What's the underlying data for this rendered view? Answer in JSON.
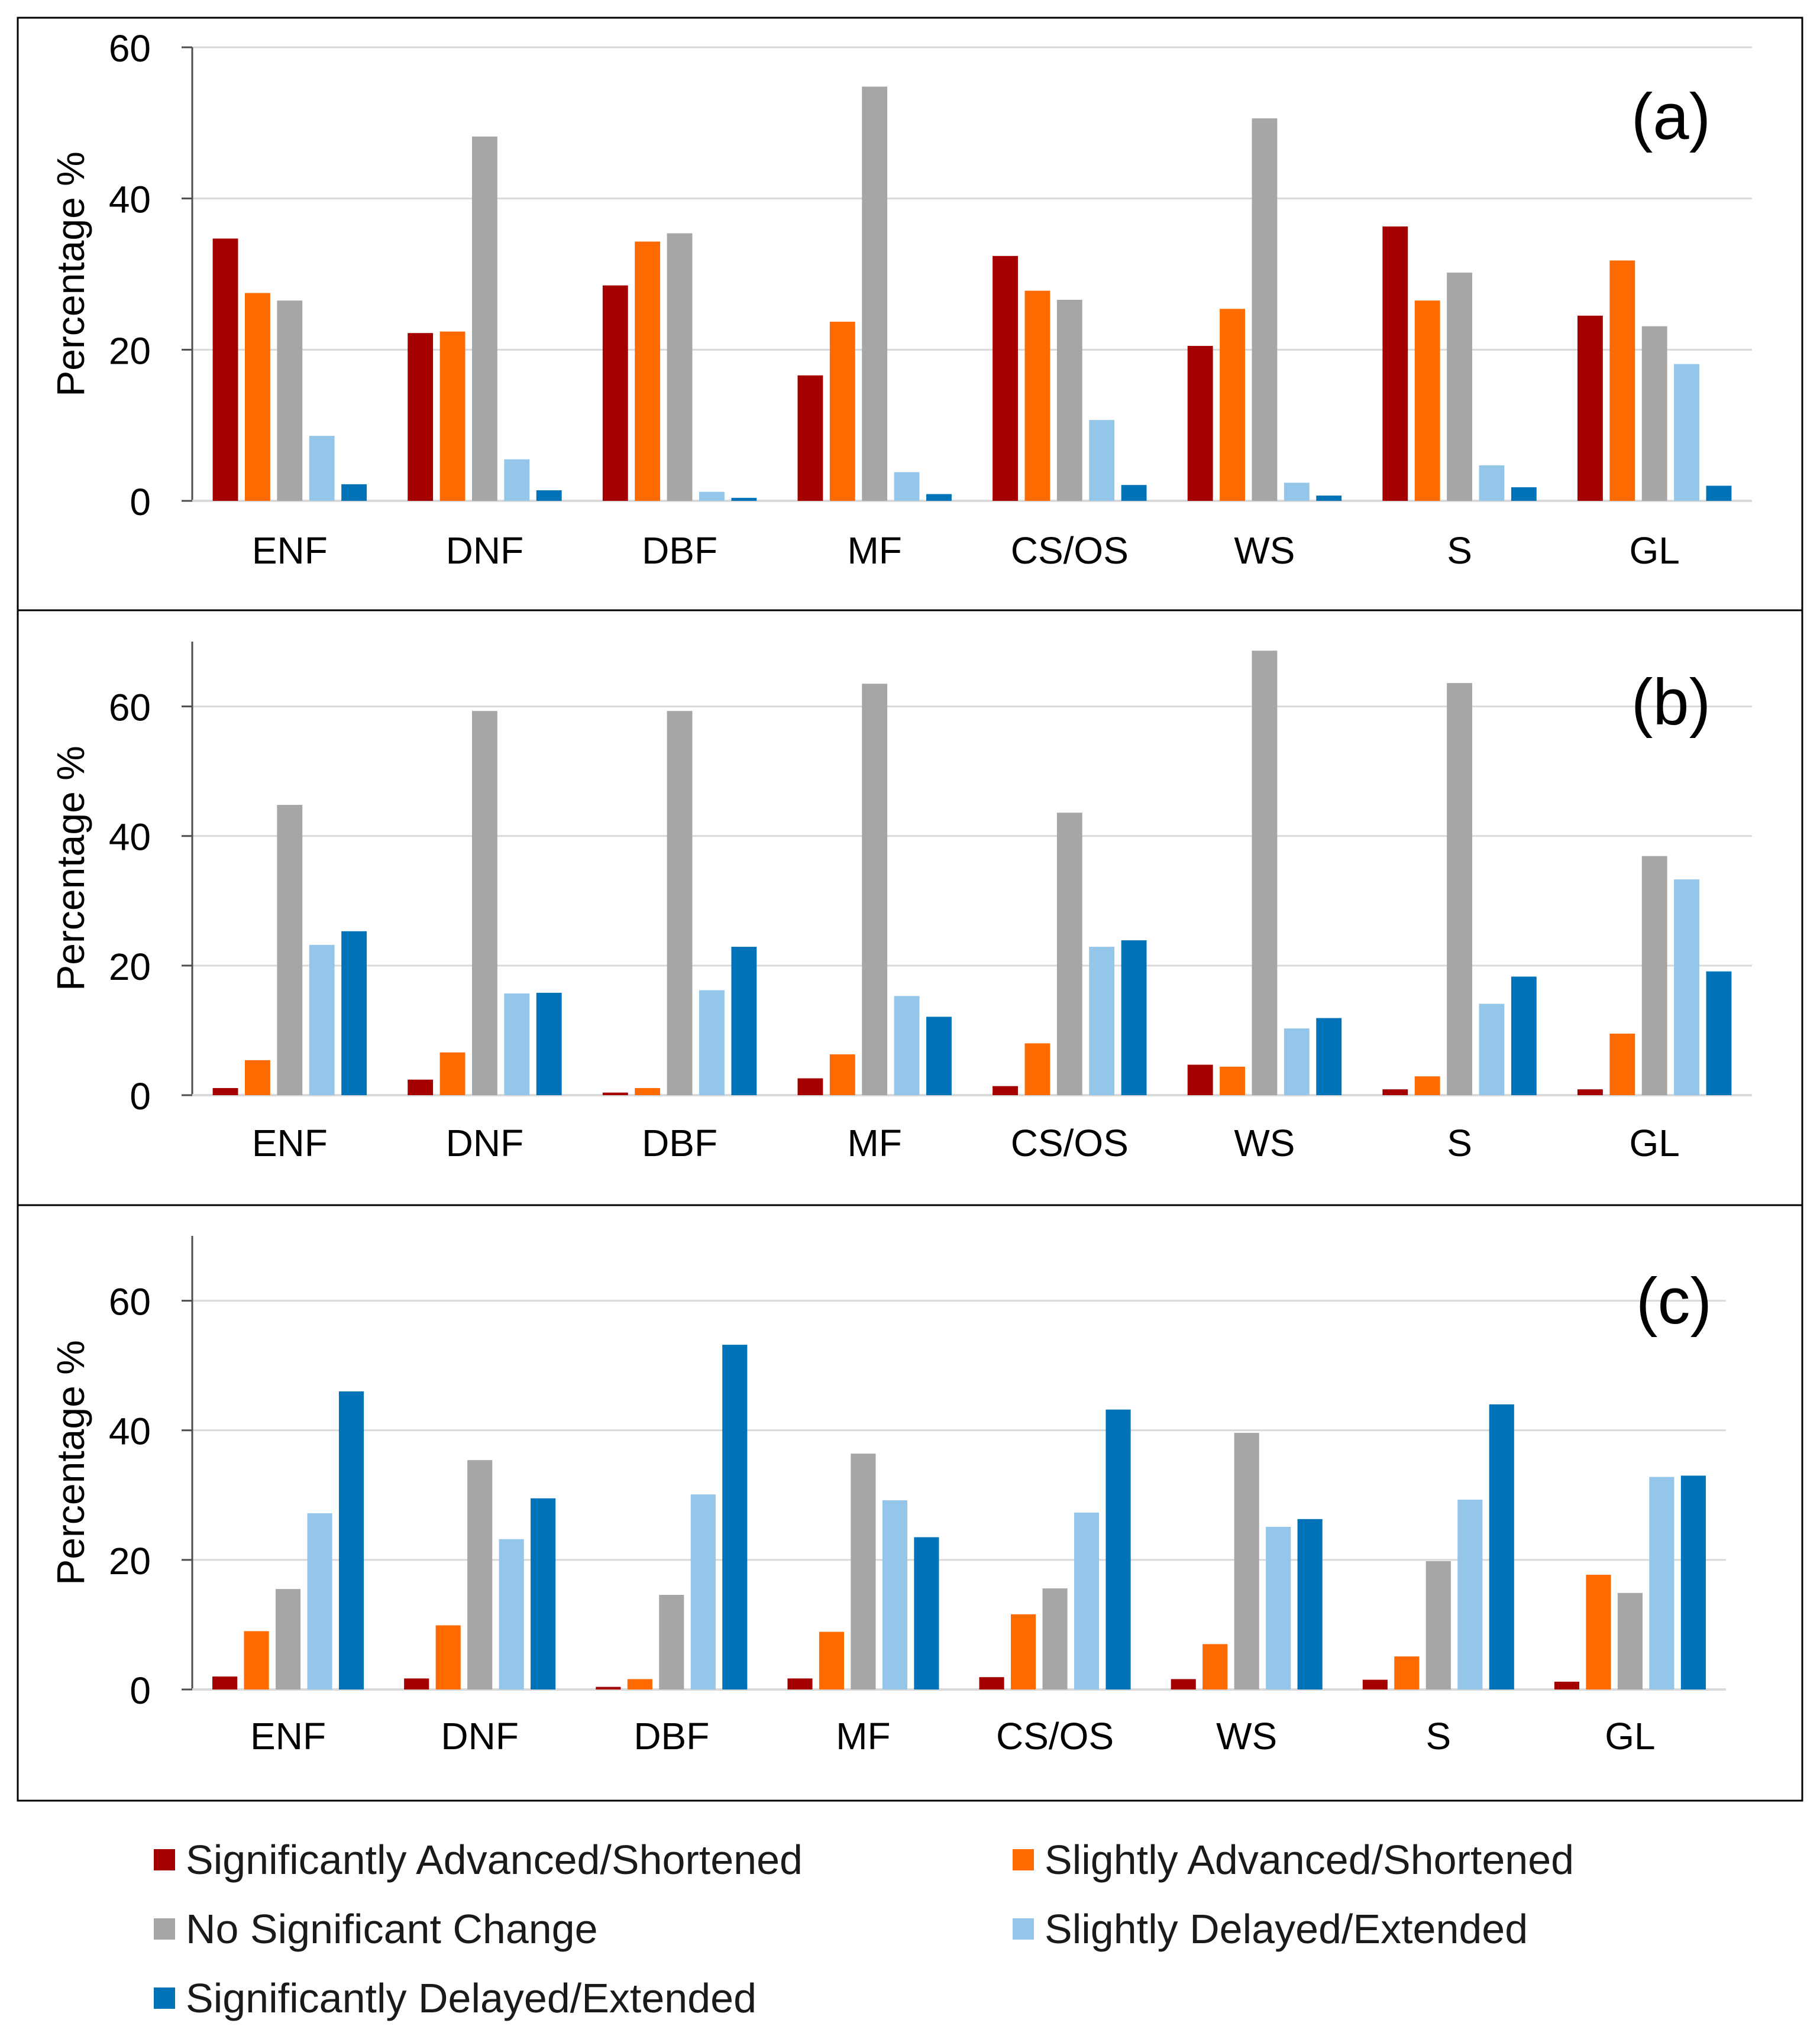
{
  "chart_data": [
    {
      "type": "bar",
      "panel_label": "(a)",
      "ylabel": "Percentage %",
      "ylim": [
        0,
        60
      ],
      "yticks": [
        0,
        20,
        40,
        60
      ],
      "grid": true,
      "categories": [
        "ENF",
        "DNF",
        "DBF",
        "MF",
        "CS/OS",
        "WS",
        "S",
        "GL"
      ],
      "series": [
        {
          "name": "Significantly Advanced/Shortened",
          "values": [
            34.7,
            22.2,
            28.5,
            16.6,
            32.4,
            20.5,
            36.3,
            24.5
          ]
        },
        {
          "name": "Slightly Advanced/Shortened",
          "values": [
            27.5,
            22.4,
            34.3,
            23.7,
            27.8,
            25.4,
            26.5,
            31.8
          ]
        },
        {
          "name": "No Significant Change",
          "values": [
            26.5,
            48.2,
            35.4,
            54.8,
            26.6,
            50.6,
            30.2,
            23.1
          ]
        },
        {
          "name": "Slightly Delayed/Extended",
          "values": [
            8.6,
            5.5,
            1.2,
            3.8,
            10.7,
            2.4,
            4.7,
            18.1
          ]
        },
        {
          "name": "Significantly Delayed/Extended",
          "values": [
            2.2,
            1.4,
            0.4,
            0.9,
            2.1,
            0.7,
            1.8,
            2.0
          ]
        }
      ]
    },
    {
      "type": "bar",
      "panel_label": "(b)",
      "ylabel": "Percentage %",
      "ylim": [
        0,
        70
      ],
      "yticks": [
        0,
        20,
        40,
        60
      ],
      "grid": true,
      "categories": [
        "ENF",
        "DNF",
        "DBF",
        "MF",
        "CS/OS",
        "WS",
        "S",
        "GL"
      ],
      "series": [
        {
          "name": "Significantly Advanced/Shortened",
          "values": [
            1.1,
            2.4,
            0.4,
            2.6,
            1.4,
            4.7,
            0.9,
            0.9
          ]
        },
        {
          "name": "Slightly Advanced/Shortened",
          "values": [
            5.4,
            6.6,
            1.1,
            6.3,
            8.0,
            4.4,
            2.9,
            9.5
          ]
        },
        {
          "name": "No Significant Change",
          "values": [
            44.8,
            59.3,
            59.3,
            63.5,
            43.6,
            68.6,
            63.6,
            36.9
          ]
        },
        {
          "name": "Slightly Delayed/Extended",
          "values": [
            23.2,
            15.7,
            16.2,
            15.3,
            22.9,
            10.3,
            14.1,
            33.3
          ]
        },
        {
          "name": "Significantly Delayed/Extended",
          "values": [
            25.3,
            15.8,
            22.9,
            12.1,
            23.9,
            11.9,
            18.3,
            19.1
          ]
        }
      ]
    },
    {
      "type": "bar",
      "panel_label": "(c)",
      "ylabel": "Percentage %",
      "ylim": [
        0,
        70
      ],
      "yticks": [
        0,
        20,
        40,
        60
      ],
      "grid": true,
      "categories": [
        "ENF",
        "DNF",
        "DBF",
        "MF",
        "CS/OS",
        "WS",
        "S",
        "GL"
      ],
      "series": [
        {
          "name": "Significantly Advanced/Shortened",
          "values": [
            2.0,
            1.7,
            0.4,
            1.7,
            1.9,
            1.6,
            1.5,
            1.2
          ]
        },
        {
          "name": "Slightly Advanced/Shortened",
          "values": [
            9.0,
            9.9,
            1.6,
            8.9,
            11.6,
            7.0,
            5.1,
            17.7
          ]
        },
        {
          "name": "No Significant Change",
          "values": [
            15.5,
            35.4,
            14.6,
            36.4,
            15.6,
            39.6,
            19.8,
            14.9
          ]
        },
        {
          "name": "Slightly Delayed/Extended",
          "values": [
            27.2,
            23.2,
            30.1,
            29.2,
            27.3,
            25.1,
            29.3,
            32.8
          ]
        },
        {
          "name": "Significantly Delayed/Extended",
          "values": [
            46.0,
            29.5,
            53.2,
            23.5,
            43.2,
            26.3,
            44.0,
            33.0
          ]
        }
      ]
    }
  ],
  "legend": {
    "items": [
      {
        "label": "Significantly Advanced/Shortened",
        "color": "#A50000"
      },
      {
        "label": "Slightly Advanced/Shortened",
        "color": "#FF6A00"
      },
      {
        "label": "No Significant Change",
        "color": "#A6A6A6"
      },
      {
        "label": "Slightly Delayed/Extended",
        "color": "#94C6EA"
      },
      {
        "label": "Significantly Delayed/Extended",
        "color": "#0072B8"
      }
    ]
  }
}
